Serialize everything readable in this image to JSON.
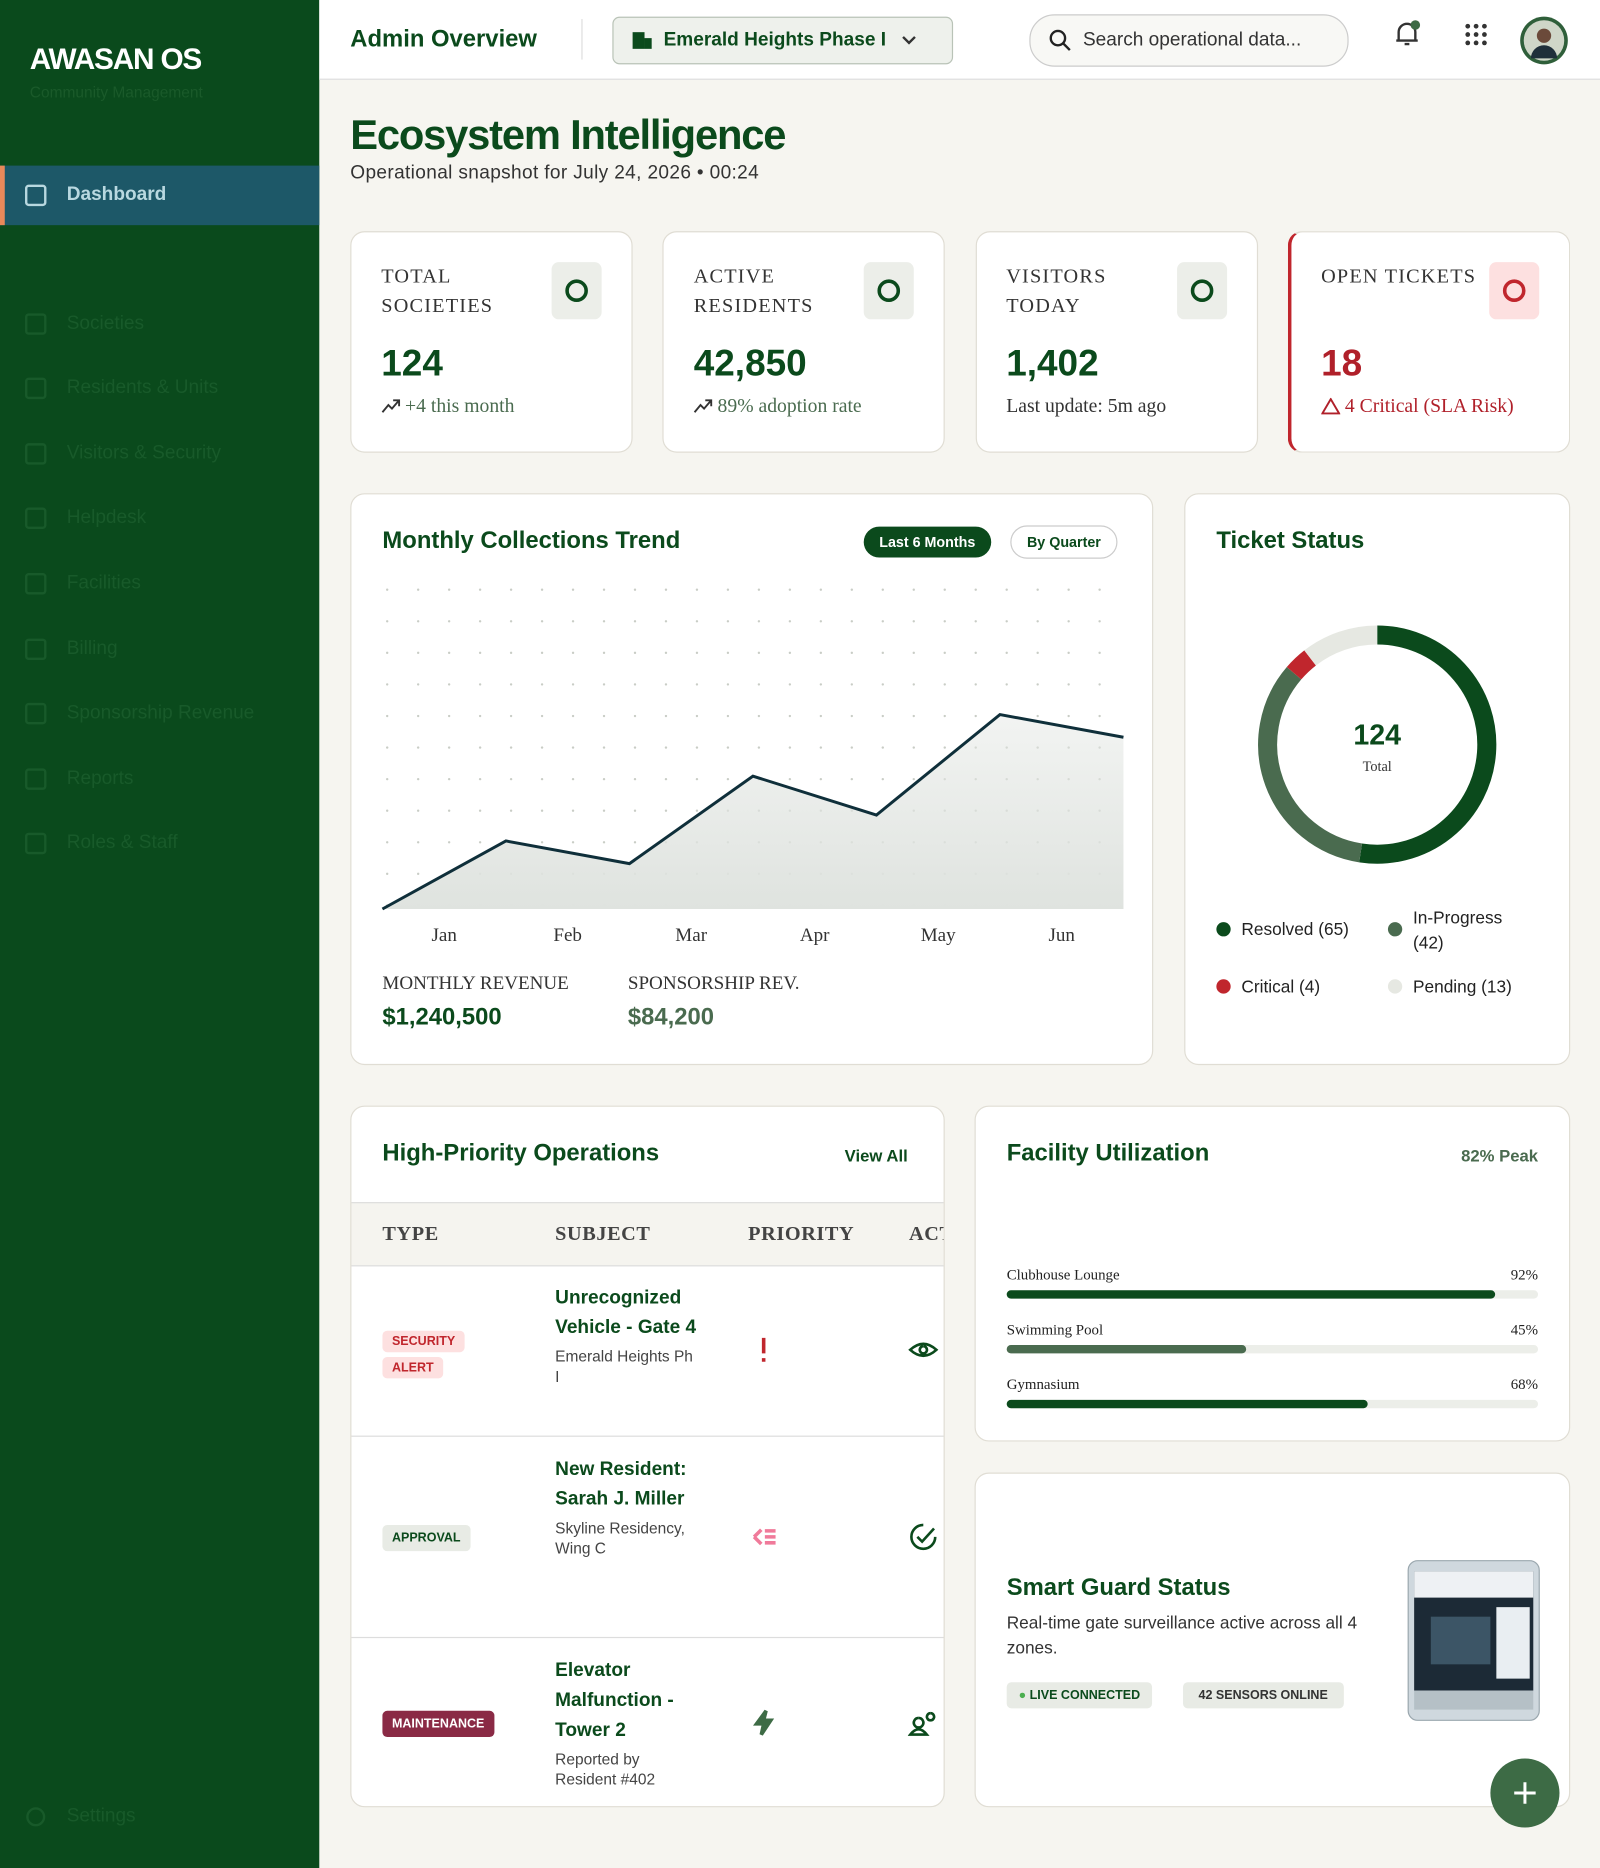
{
  "sidebar": {
    "brand": "AWASAN OS",
    "tagline": "Community Management",
    "nav": [
      "Dashboard",
      "Societies",
      "Residents & Units",
      "Visitors & Security",
      "Helpdesk",
      "Facilities",
      "Billing",
      "Sponsorship Revenue",
      "Reports",
      "Roles & Staff"
    ],
    "settings": "Settings"
  },
  "header": {
    "title": "Admin Overview",
    "project": "Emerald Heights Phase I",
    "search_placeholder": "Search operational data..."
  },
  "page": {
    "title": "Ecosystem Intelligence",
    "subtitle": "Operational snapshot for July 24, 2026 • 00:24"
  },
  "stats": [
    {
      "label": "TOTAL SOCIETIES",
      "value": "124",
      "note": "+4 this month"
    },
    {
      "label": "ACTIVE RESIDENTS",
      "value": "42,850",
      "note": "89% adoption rate"
    },
    {
      "label": "VISITORS TODAY",
      "value": "1,402",
      "note": "Last update: 5m ago"
    },
    {
      "label": "OPEN TICKETS",
      "value": "18",
      "note": "4 Critical (SLA Risk)"
    }
  ],
  "chart_data": [
    {
      "type": "line",
      "title": "Monthly Collections Trend",
      "toggles": [
        "Last 6 Months",
        "By Quarter"
      ],
      "categories": [
        "Jan",
        "Feb",
        "Mar",
        "Apr",
        "May",
        "Jun",
        null
      ],
      "values": [
        0,
        21,
        14,
        41,
        29,
        60,
        53
      ],
      "color": "#0f2f3a",
      "ylim": [
        0,
        100
      ],
      "summary": [
        {
          "label": "MONTHLY REVENUE",
          "value": "$1,240,500"
        },
        {
          "label": "SPONSORSHIP REV.",
          "value": "$84,200"
        }
      ]
    },
    {
      "type": "donut",
      "title": "Ticket Status",
      "center_value": 124,
      "center_label": "Total",
      "labels": [
        "Resolved (65)",
        "In-Progress (42)",
        "Critical (4)",
        "Pending (13)"
      ],
      "values": [
        65,
        42,
        4,
        13
      ],
      "colors": [
        "#0b4a1c",
        "#4a6b4f",
        "#c0262d",
        "#e6e8e2"
      ]
    },
    {
      "type": "hbar",
      "title": "Facility Utilization",
      "note": "82% Peak",
      "categories": [
        "Clubhouse Lounge",
        "Swimming Pool",
        "Gymnasium"
      ],
      "values": [
        92,
        45,
        68
      ],
      "value_labels": [
        "92%",
        "45%",
        "68%"
      ],
      "colors": [
        "#0b4a1c",
        "#4a6b4f",
        "#0b4a1c"
      ],
      "xlim": [
        0,
        100
      ]
    }
  ],
  "table": {
    "title": "High-Priority Operations",
    "action": "View All",
    "columns": [
      "TYPE",
      "SUBJECT",
      "PRIORITY",
      "ACT"
    ],
    "rows": [
      {
        "type": "SECURITY ALERT",
        "subject": "Unrecognized Vehicle - Gate 4",
        "location": "Emerald Heights Ph I"
      },
      {
        "type": "APPROVAL",
        "subject": "New Resident: Sarah J. Miller",
        "location": "Skyline Residency, Wing C"
      },
      {
        "type": "MAINTENANCE",
        "subject": "Elevator Malfunction - Tower 2",
        "location": "Reported by Resident #402"
      }
    ]
  },
  "guard": {
    "title": "Smart Guard Status",
    "text": "Real-time gate surveillance active across all 4 zones.",
    "badges": [
      "LIVE CONNECTED",
      "42 SENSORS ONLINE"
    ]
  }
}
